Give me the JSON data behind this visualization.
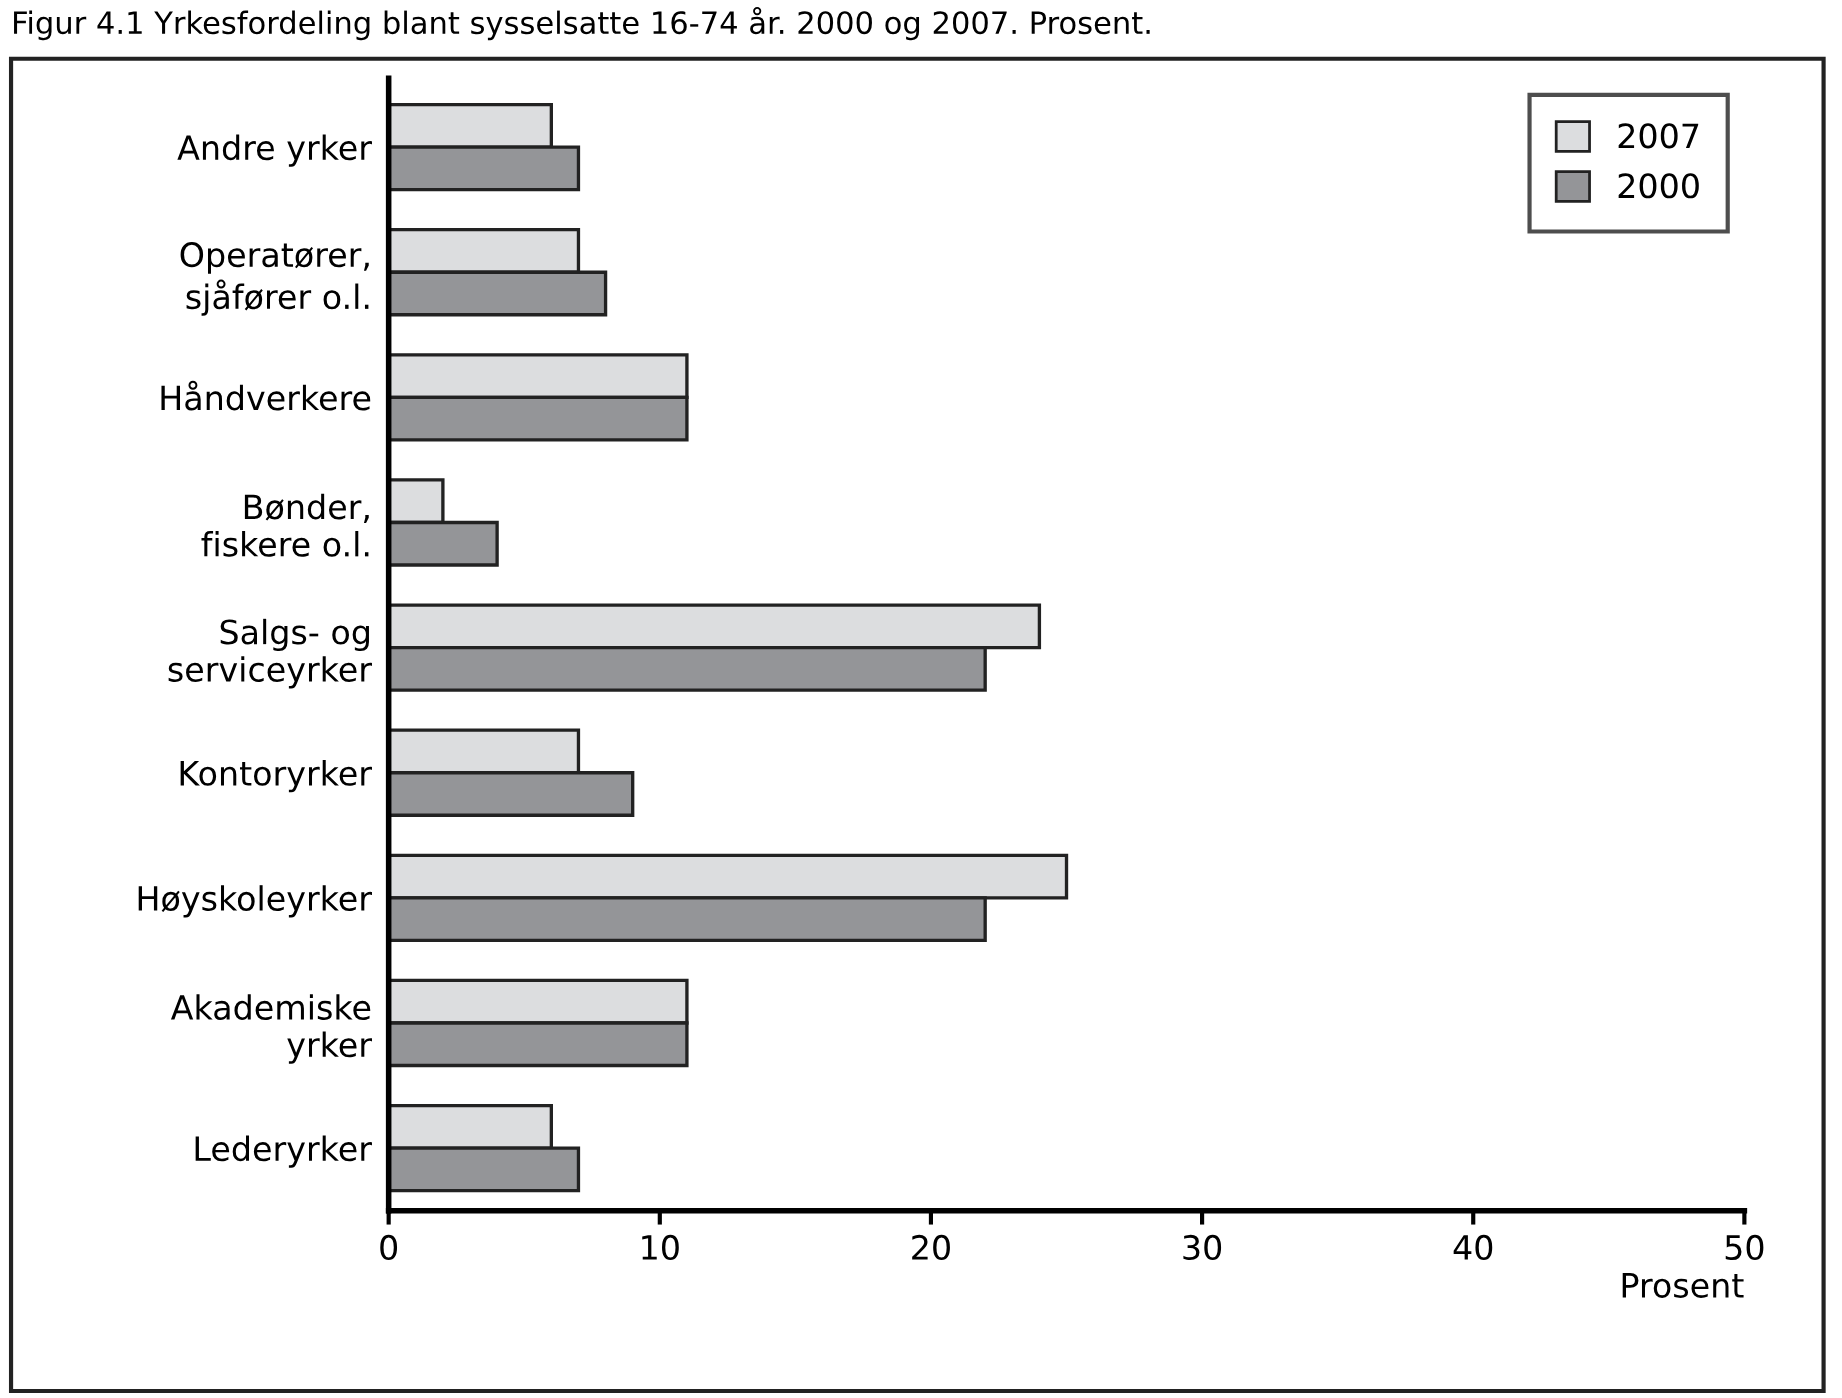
{
  "chart_data": {
    "type": "bar",
    "orientation": "horizontal",
    "title": "Figur 4.1 Yrkesfordeling blant sysselsatte 16-74 år. 2000 og 2007. Prosent.",
    "xlabel": "Prosent",
    "categories": [
      "Andre yrker",
      "Operatører,\nsjåfører o.l.",
      "Håndverkere",
      "Bønder,\nfiskere o.l.",
      "Salgs- og\nserviceyrker",
      "Kontoryrker",
      "Høyskoleyrker",
      "Akademiske\nyrker",
      "Lederyrker"
    ],
    "series": [
      {
        "name": "2007",
        "color": "#dcdddf",
        "values": [
          6,
          7,
          11,
          2,
          24,
          7,
          25,
          11,
          6
        ]
      },
      {
        "name": "2000",
        "color": "#949598",
        "values": [
          7,
          8,
          11,
          4,
          22,
          9,
          22,
          11,
          7
        ]
      }
    ],
    "xlim": [
      0,
      50
    ],
    "xticks": [
      0,
      10,
      20,
      30,
      40,
      50
    ],
    "grid": false,
    "legend": "top right"
  }
}
